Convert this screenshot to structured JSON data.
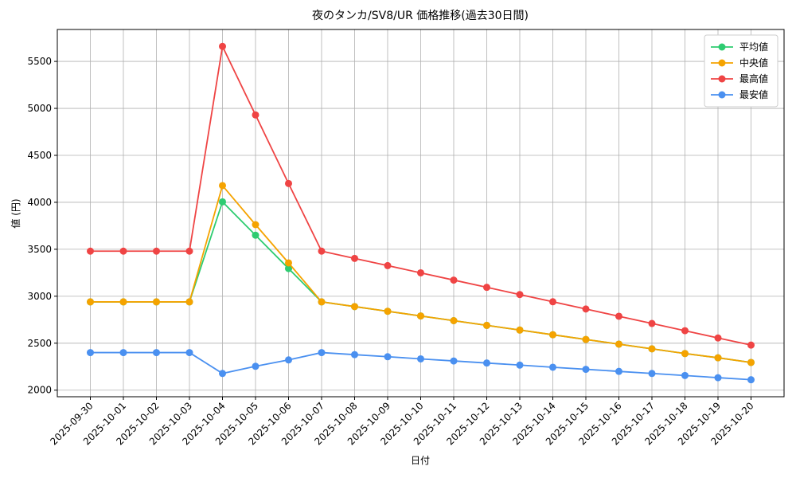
{
  "chart_data": {
    "type": "line",
    "title": "夜のタンカ/SV8/UR 価格推移(過去30日間)",
    "x_label": "日付",
    "y_label": "値 (円)",
    "categories": [
      "2025-09-30",
      "2025-10-01",
      "2025-10-02",
      "2025-10-03",
      "2025-10-04",
      "2025-10-05",
      "2025-10-06",
      "2025-10-07",
      "2025-10-08",
      "2025-10-09",
      "2025-10-10",
      "2025-10-11",
      "2025-10-12",
      "2025-10-13",
      "2025-10-14",
      "2025-10-15",
      "2025-10-16",
      "2025-10-17",
      "2025-10-18",
      "2025-10-19",
      "2025-10-20"
    ],
    "series": [
      {
        "name": "平均値",
        "color": "#2ecc71",
        "values": [
          2940,
          2940,
          2940,
          2940,
          4005,
          3650,
          3295,
          2940,
          2890,
          2840,
          2790,
          2740,
          2690,
          2640,
          2590,
          2540,
          2490,
          2440,
          2390,
          2345,
          2295
        ]
      },
      {
        "name": "中央値",
        "color": "#f5a300",
        "values": [
          2940,
          2940,
          2940,
          2940,
          4178,
          3762,
          3355,
          2940,
          2890,
          2840,
          2790,
          2740,
          2690,
          2640,
          2590,
          2540,
          2490,
          2440,
          2390,
          2345,
          2295
        ]
      },
      {
        "name": "最高値",
        "color": "#ef4444",
        "values": [
          3480,
          3480,
          3480,
          3480,
          5660,
          4930,
          4200,
          3480,
          3403,
          3326,
          3249,
          3172,
          3095,
          3018,
          2941,
          2864,
          2787,
          2710,
          2633,
          2556,
          2480
        ]
      },
      {
        "name": "最安値",
        "color": "#4a90f0",
        "values": [
          2400,
          2400,
          2400,
          2400,
          2178,
          2254,
          2322,
          2400,
          2378,
          2356,
          2333,
          2311,
          2289,
          2267,
          2244,
          2222,
          2200,
          2178,
          2156,
          2133,
          2111
        ]
      }
    ],
    "ylim": [
      1930,
      5840
    ],
    "yticks": [
      2000,
      2500,
      3000,
      3500,
      4000,
      4500,
      5000,
      5500
    ],
    "grid": true,
    "legend": "upper-right"
  }
}
